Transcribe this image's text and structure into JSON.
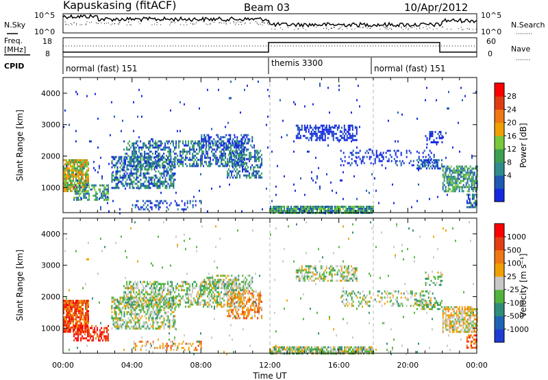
{
  "header": {
    "station": "Kapuskasing (fitACF)",
    "beam": "Beam 03",
    "date": "10/Apr/2012"
  },
  "status_panel": {
    "nsky_label": "N.Sky",
    "nsearch_label": "N.Search",
    "noise_ticks": [
      "10^5",
      "10^0"
    ],
    "freq_label": "Freq.",
    "freq_unit": "[MHz]",
    "freq_ticks": [
      "18",
      "8"
    ],
    "nave_label": "Nave",
    "nave_ticks": [
      "60",
      "0"
    ],
    "cpid_label": "CPID",
    "cpid_segments": [
      {
        "label": "normal (fast) 151",
        "start_hour": 0
      },
      {
        "label": "themis 3300",
        "start_hour": 12
      },
      {
        "label": "normal (fast) 151",
        "start_hour": 18
      }
    ]
  },
  "chart_data": [
    {
      "type": "heatmap",
      "ylabel": "Slant Range [km]",
      "xlabel": "Time UT",
      "xlim": [
        0,
        24
      ],
      "ylim": [
        200,
        4500
      ],
      "yticks": [
        1000,
        2000,
        3000,
        4000
      ],
      "colorbar": {
        "label": "Power [dB]",
        "ticks": [
          "28",
          "24",
          "20",
          "16",
          "12",
          "8",
          "4"
        ],
        "colors": [
          "#1428e0",
          "#1e5ab4",
          "#2e8c8c",
          "#3ca050",
          "#78c83c",
          "#f0a000",
          "#f07814",
          "#e03c14",
          "#ff0000"
        ]
      }
    },
    {
      "type": "heatmap",
      "ylabel": "Slant Range [km]",
      "xlabel": "Time UT",
      "xlim": [
        0,
        24
      ],
      "ylim": [
        200,
        4500
      ],
      "yticks": [
        1000,
        2000,
        3000,
        4000
      ],
      "colorbar": {
        "label": "Velocity [m s⁻¹]",
        "ticks": [
          "1000",
          "500",
          "100",
          "25",
          "-25",
          "-100",
          "-500",
          "-1000"
        ],
        "colors": [
          "#1e3cd2",
          "#1e64b4",
          "#2e8c7a",
          "#50b43c",
          "#c8c8c8",
          "#f0a000",
          "#f07814",
          "#e63c14",
          "#ff0000"
        ]
      }
    }
  ],
  "time_axis": {
    "ticks": [
      "00:00",
      "04:00",
      "08:00",
      "12:00",
      "16:00",
      "20:00",
      "00:00"
    ],
    "label": "Time UT"
  }
}
